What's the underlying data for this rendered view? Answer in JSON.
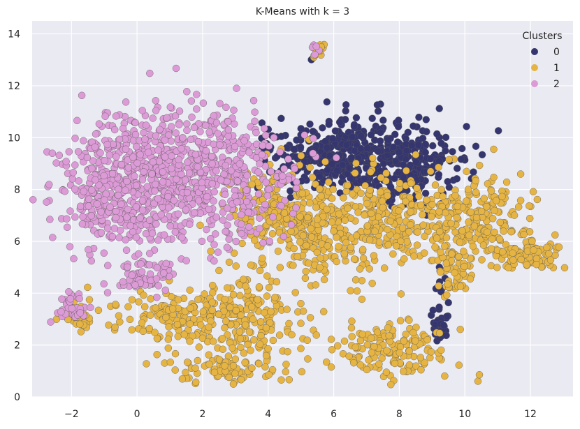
{
  "chart_data": {
    "type": "scatter",
    "title": "K-Means with k = 3",
    "xlabel": "",
    "ylabel": "",
    "xlim": [
      -3.2,
      13.3
    ],
    "ylim": [
      0,
      14.5
    ],
    "xticks": [
      -2,
      0,
      2,
      4,
      6,
      8,
      10,
      12
    ],
    "yticks": [
      0,
      2,
      4,
      6,
      8,
      10,
      12,
      14
    ],
    "xtick_labels": [
      "−2",
      "0",
      "2",
      "4",
      "6",
      "8",
      "10",
      "12"
    ],
    "ytick_labels": [
      "0",
      "2",
      "4",
      "6",
      "8",
      "10",
      "12",
      "14"
    ],
    "grid": true,
    "legend": {
      "title": "Clusters",
      "placement": "top-right",
      "entries": [
        "0",
        "1",
        "2"
      ]
    },
    "colors": {
      "background": "#eaeaf2",
      "grid": "#ffffff",
      "series": [
        "#35356f",
        "#e6b443",
        "#dc9ad6"
      ],
      "edge": "#555555"
    },
    "series": [
      {
        "name": "0",
        "regions": [
          [
            7.2,
            9.3,
            1.3,
            0.75,
            340
          ],
          [
            5.6,
            9.2,
            0.9,
            0.55,
            160
          ],
          [
            8.6,
            8.7,
            0.5,
            0.7,
            70
          ],
          [
            9.2,
            2.7,
            0.15,
            0.35,
            30
          ],
          [
            9.3,
            4.2,
            0.08,
            0.5,
            10
          ],
          [
            5.5,
            13.4,
            0.08,
            0.2,
            3
          ]
        ]
      },
      {
        "name": "1",
        "regions": [
          [
            5.5,
            6.5,
            1.1,
            1.1,
            300
          ],
          [
            8.0,
            6.8,
            1.0,
            0.9,
            220
          ],
          [
            10.5,
            7.0,
            0.8,
            0.9,
            170
          ],
          [
            11.8,
            5.5,
            0.6,
            0.35,
            90
          ],
          [
            9.7,
            5.0,
            0.3,
            0.7,
            60
          ],
          [
            3.5,
            3.0,
            0.8,
            0.8,
            170
          ],
          [
            1.2,
            3.1,
            1.0,
            0.5,
            150
          ],
          [
            2.8,
            1.1,
            1.0,
            0.3,
            80
          ],
          [
            7.8,
            1.8,
            1.0,
            0.6,
            150
          ],
          [
            4.0,
            7.2,
            0.6,
            0.6,
            110
          ],
          [
            -1.7,
            2.9,
            0.25,
            0.3,
            30
          ],
          [
            5.6,
            13.3,
            0.12,
            0.15,
            10
          ]
        ]
      },
      {
        "name": "2",
        "regions": [
          [
            0.3,
            8.3,
            1.3,
            1.3,
            500
          ],
          [
            2.4,
            8.6,
            1.3,
            1.2,
            400
          ],
          [
            -0.9,
            7.6,
            0.6,
            1.2,
            120
          ],
          [
            0.3,
            4.7,
            0.4,
            0.4,
            60
          ],
          [
            -2.0,
            3.4,
            0.25,
            0.35,
            35
          ],
          [
            5.45,
            13.5,
            0.08,
            0.2,
            5
          ]
        ]
      }
    ]
  }
}
